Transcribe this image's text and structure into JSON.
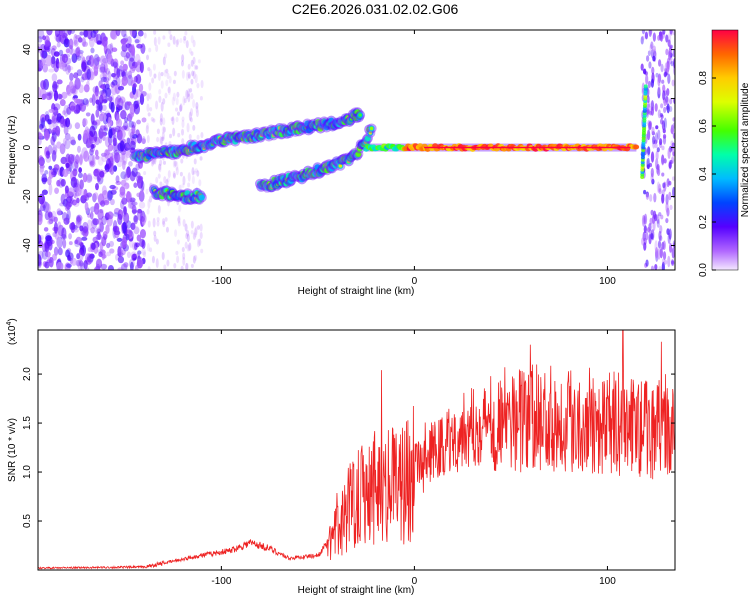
{
  "title": "C2E6.2026.031.02.02.G06",
  "chart_data": [
    {
      "type": "heatmap",
      "name": "spectrogram",
      "xlabel": "Height of straight line (km)",
      "ylabel": "Frequency (Hz)",
      "xlim": [
        -195,
        135
      ],
      "ylim": [
        -50,
        48
      ],
      "xticks": [
        -100,
        0,
        100
      ],
      "yticks": [
        -40,
        -20,
        0,
        20,
        40
      ],
      "colorbar": {
        "label": "Normalized spectral amplitude",
        "range": [
          0,
          1
        ],
        "ticks": [
          "0.0",
          "0.2",
          "0.4",
          "0.6",
          "0.8"
        ],
        "tick_values": [
          0,
          0.2,
          0.4,
          0.6,
          0.8
        ]
      },
      "features": [
        {
          "name": "main-track",
          "points": [
            [
              -145,
              -4
            ],
            [
              -120,
              -1
            ],
            [
              -100,
              3
            ],
            [
              -75,
              6
            ],
            [
              -50,
              9
            ],
            [
              -35,
              11
            ],
            [
              -28,
              14
            ]
          ]
        },
        {
          "name": "lower-track",
          "points": [
            [
              -80,
              -16
            ],
            [
              -60,
              -12
            ],
            [
              -40,
              -7
            ],
            [
              -30,
              -3
            ],
            [
              -22,
              8
            ]
          ]
        },
        {
          "name": "side-track",
          "points": [
            [
              -135,
              -18
            ],
            [
              -120,
              -20
            ],
            [
              -110,
              -20
            ]
          ]
        },
        {
          "name": "carrier-line",
          "points": [
            [
              -25,
              0
            ],
            [
              0,
              0
            ],
            [
              50,
              0
            ],
            [
              100,
              0
            ],
            [
              115,
              0
            ]
          ]
        },
        {
          "name": "spike",
          "points": [
            [
              117,
              -10
            ],
            [
              118,
              5
            ],
            [
              119,
              25
            ]
          ]
        }
      ]
    },
    {
      "type": "line",
      "name": "snr",
      "xlabel": "Height of straight line (km)",
      "ylabel": "SNR (10 * v/v)",
      "multiplier": "(x10",
      "multiplier_exp": "4",
      "multiplier_close": ")",
      "xlim": [
        -195,
        135
      ],
      "ylim": [
        0,
        2.45
      ],
      "xticks": [
        -100,
        0,
        100
      ],
      "yticks": [
        "0.5",
        "1.0",
        "1.5",
        "2.0"
      ],
      "ytick_values": [
        0.5,
        1.0,
        1.5,
        2.0
      ],
      "color": "#ee2222",
      "envelope": [
        [
          -195,
          0.02
        ],
        [
          -140,
          0.03
        ],
        [
          -125,
          0.09
        ],
        [
          -110,
          0.15
        ],
        [
          -95,
          0.2
        ],
        [
          -85,
          0.28
        ],
        [
          -75,
          0.22
        ],
        [
          -65,
          0.12
        ],
        [
          -50,
          0.15
        ],
        [
          -40,
          0.4
        ],
        [
          -30,
          0.8
        ],
        [
          -20,
          0.9
        ],
        [
          -10,
          0.85
        ],
        [
          0,
          1.0
        ],
        [
          10,
          1.2
        ],
        [
          25,
          1.42
        ],
        [
          40,
          1.52
        ],
        [
          60,
          1.55
        ],
        [
          80,
          1.55
        ],
        [
          100,
          1.5
        ],
        [
          120,
          1.45
        ],
        [
          135,
          1.4
        ]
      ],
      "peaks": [
        [
          -17,
          2.04
        ],
        [
          60,
          2.3
        ],
        [
          108,
          2.45
        ],
        [
          128,
          2.33
        ]
      ]
    }
  ]
}
